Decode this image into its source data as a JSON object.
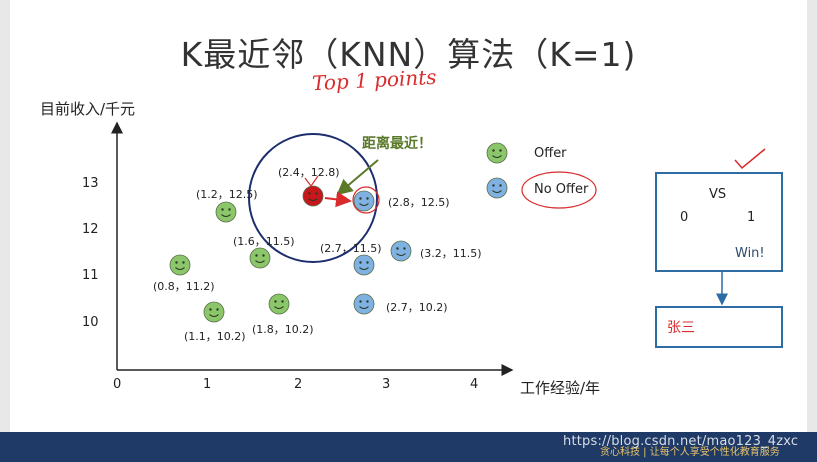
{
  "title": "K最近邻（KNN）算法（K=1)",
  "annotation_handwritten": "Top 1 points",
  "y_axis_label": "目前收入/千元",
  "x_axis_label": "工作经验/年",
  "x_ticks": [
    "0",
    "1",
    "2",
    "3",
    "4"
  ],
  "y_ticks": [
    "10",
    "11",
    "12",
    "13"
  ],
  "callout": "距离最近！",
  "legend": {
    "offer": "Offer",
    "no_offer": "No Offer"
  },
  "points": [
    {
      "label": "(0.8，11.2)",
      "class": "offer"
    },
    {
      "label": "(1.1，10.2)",
      "class": "offer"
    },
    {
      "label": "(1.2，12.5)",
      "class": "offer"
    },
    {
      "label": "(1.6，11.5)",
      "class": "offer"
    },
    {
      "label": "(1.8，10.2)",
      "class": "offer"
    },
    {
      "label": "(2.7，11.5)",
      "class": "no_offer"
    },
    {
      "label": "(2.8，12.5)",
      "class": "no_offer"
    },
    {
      "label": "(3.2，11.5)",
      "class": "no_offer"
    },
    {
      "label": "(2.7，10.2)",
      "class": "no_offer"
    }
  ],
  "query_point": {
    "label": "(2.4，12.8)"
  },
  "vs_panel": {
    "vs": "VS",
    "left_count": "0",
    "right_count": "1",
    "result": "Win!"
  },
  "result_panel": {
    "name": "张三"
  },
  "watermark": "https://blog.csdn.net/mao123_4zxc",
  "footer_brand": "贪心科技 | 让每个人享受个性化教育服务",
  "colors": {
    "offer": "#8cc66a",
    "no_offer": "#7fb2e3",
    "query": "#c8161d",
    "panel_border": "#2e6da4",
    "footer": "#1f3a66",
    "annotation": "#d92b2b"
  }
}
